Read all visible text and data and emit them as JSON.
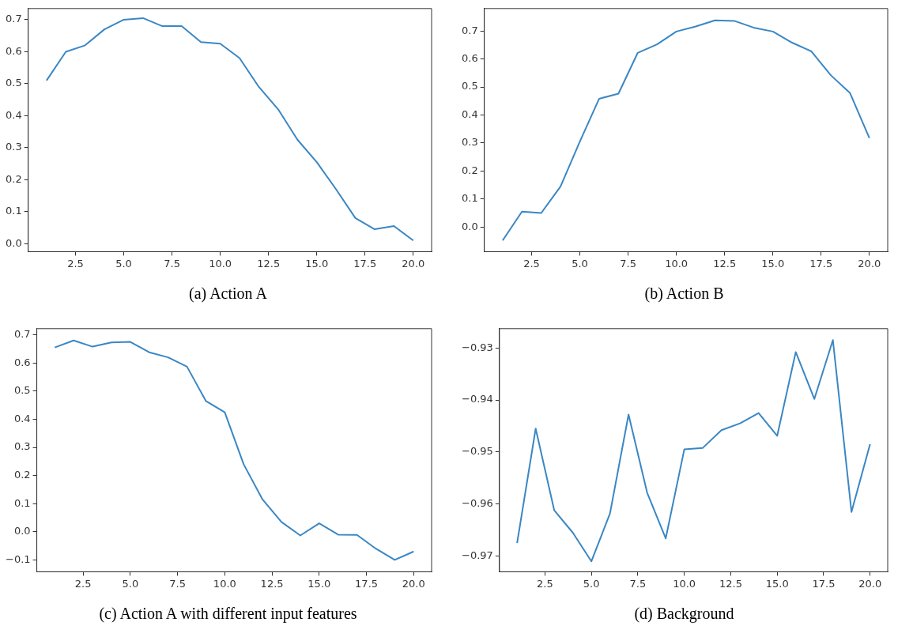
{
  "chart_data": [
    {
      "type": "line",
      "title": "(a)  Action A",
      "x": [
        1,
        2,
        3,
        4,
        5,
        6,
        7,
        8,
        9,
        10,
        11,
        12,
        13,
        14,
        15,
        16,
        17,
        18,
        19,
        20
      ],
      "series": [
        {
          "color": "#3a87c4",
          "values": [
            0.51,
            0.6,
            0.62,
            0.67,
            0.7,
            0.705,
            0.68,
            0.68,
            0.63,
            0.625,
            0.58,
            0.49,
            0.42,
            0.325,
            0.255,
            0.17,
            0.08,
            0.045,
            0.055,
            0.01
          ]
        }
      ],
      "xlim": [
        0.05,
        20.95
      ],
      "xticks": [
        {
          "value": 2.5,
          "label": "2.5"
        },
        {
          "value": 5,
          "label": "5.0"
        },
        {
          "value": 7.5,
          "label": "7.5"
        },
        {
          "value": 10,
          "label": "10.0"
        },
        {
          "value": 12.5,
          "label": "12.5"
        },
        {
          "value": 15,
          "label": "15.0"
        },
        {
          "value": 17.5,
          "label": "17.5"
        },
        {
          "value": 20,
          "label": "20.0"
        }
      ],
      "ylim": [
        -0.025,
        0.735
      ],
      "yticks": [
        {
          "value": 0,
          "label": "0.0"
        },
        0.1,
        0.2,
        0.3,
        0.4,
        0.5,
        0.6,
        0.7
      ],
      "grid": false,
      "legend": false
    },
    {
      "type": "line",
      "title": "(b)  Action B",
      "x": [
        1,
        2,
        3,
        4,
        5,
        6,
        7,
        8,
        9,
        10,
        11,
        12,
        13,
        14,
        15,
        16,
        17,
        18,
        19,
        20
      ],
      "series": [
        {
          "color": "#3a87c4",
          "values": [
            -0.048,
            0.055,
            0.05,
            0.145,
            0.305,
            0.458,
            0.476,
            0.622,
            0.652,
            0.698,
            0.716,
            0.738,
            0.736,
            0.712,
            0.698,
            0.658,
            0.627,
            0.542,
            0.478,
            0.318
          ]
        }
      ],
      "xlim": [
        0.05,
        20.95
      ],
      "xticks": [
        {
          "value": 2.5,
          "label": "2.5"
        },
        {
          "value": 5,
          "label": "5.0"
        },
        {
          "value": 7.5,
          "label": "7.5"
        },
        {
          "value": 10,
          "label": "10.0"
        },
        {
          "value": 12.5,
          "label": "12.5"
        },
        {
          "value": 15,
          "label": "15.0"
        },
        {
          "value": 17.5,
          "label": "17.5"
        },
        {
          "value": 20,
          "label": "20.0"
        }
      ],
      "ylim": [
        -0.088,
        0.78
      ],
      "yticks": [
        {
          "value": 0,
          "label": "0.0"
        },
        0.1,
        0.2,
        0.3,
        0.4,
        0.5,
        0.6,
        0.7
      ],
      "grid": false,
      "legend": false
    },
    {
      "type": "line",
      "title": "(c)  Action A with different input features",
      "x": [
        1,
        2,
        3,
        4,
        5,
        6,
        7,
        8,
        9,
        10,
        11,
        12,
        13,
        14,
        15,
        16,
        17,
        18,
        19,
        20
      ],
      "series": [
        {
          "color": "#3a87c4",
          "values": [
            0.655,
            0.68,
            0.658,
            0.673,
            0.675,
            0.638,
            0.62,
            0.587,
            0.465,
            0.425,
            0.24,
            0.115,
            0.035,
            -0.013,
            0.03,
            -0.01,
            -0.011,
            -0.06,
            -0.1,
            -0.07
          ]
        }
      ],
      "xlim": [
        0.05,
        20.95
      ],
      "xticks": [
        {
          "value": 2.5,
          "label": "2.5"
        },
        {
          "value": 5,
          "label": "5.0"
        },
        {
          "value": 7.5,
          "label": "7.5"
        },
        {
          "value": 10,
          "label": "10.0"
        },
        {
          "value": 12.5,
          "label": "12.5"
        },
        {
          "value": 15,
          "label": "15.0"
        },
        {
          "value": 17.5,
          "label": "17.5"
        },
        {
          "value": 20,
          "label": "20.0"
        }
      ],
      "ylim": [
        -0.142,
        0.722
      ],
      "yticks": [
        {
          "value": -0.1,
          "label": "−0.1"
        },
        {
          "value": 0,
          "label": "0.0"
        },
        0.1,
        0.2,
        0.3,
        0.4,
        0.5,
        0.6,
        0.7
      ],
      "grid": false,
      "legend": false
    },
    {
      "type": "line",
      "title": "(d)  Background",
      "x": [
        1,
        2,
        3,
        4,
        5,
        6,
        7,
        8,
        9,
        10,
        11,
        12,
        13,
        14,
        15,
        16,
        17,
        18,
        19,
        20
      ],
      "series": [
        {
          "color": "#3a87c4",
          "values": [
            -0.9675,
            -0.9455,
            -0.9612,
            -0.9655,
            -0.971,
            -0.9618,
            -0.9428,
            -0.9578,
            -0.9666,
            -0.9495,
            -0.9492,
            -0.9458,
            -0.9445,
            -0.9425,
            -0.9469,
            -0.9308,
            -0.9398,
            -0.9285,
            -0.9615,
            -0.9485
          ]
        }
      ],
      "xlim": [
        0.05,
        20.95
      ],
      "xticks": [
        {
          "value": 2.5,
          "label": "2.5"
        },
        {
          "value": 5,
          "label": "5.0"
        },
        {
          "value": 7.5,
          "label": "7.5"
        },
        {
          "value": 10,
          "label": "10.0"
        },
        {
          "value": 12.5,
          "label": "12.5"
        },
        {
          "value": 15,
          "label": "15.0"
        },
        {
          "value": 17.5,
          "label": "17.5"
        },
        {
          "value": 20,
          "label": "20.0"
        }
      ],
      "ylim": [
        -0.973,
        -0.9263
      ],
      "yticks": [
        {
          "value": -0.97,
          "label": "−0.97"
        },
        {
          "value": -0.96,
          "label": "−0.96"
        },
        {
          "value": -0.95,
          "label": "−0.95"
        },
        {
          "value": -0.94,
          "label": "−0.94"
        },
        {
          "value": -0.93,
          "label": "−0.93"
        }
      ],
      "grid": false,
      "legend": false
    }
  ]
}
